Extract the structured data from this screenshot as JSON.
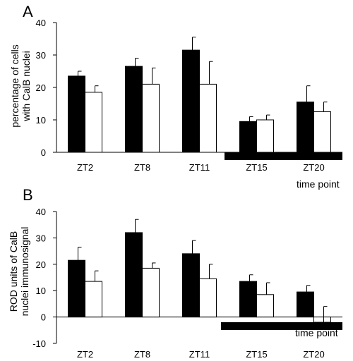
{
  "chart_data": [
    {
      "panel": "A",
      "type": "bar",
      "xlabel": "time point",
      "ylabel_lines": [
        "percentage of cells",
        "with CalB  nuclei"
      ],
      "ylim": [
        0,
        40
      ],
      "yticks": [
        "0",
        "10",
        "20",
        "30",
        "40"
      ],
      "categories": [
        "ZT2",
        "ZT8",
        "ZT11",
        "ZT15",
        "ZT20"
      ],
      "series": [
        {
          "fill": "#000000",
          "values": [
            23.5,
            26.5,
            31.5,
            9.5,
            15.5
          ],
          "errors": [
            1.5,
            2.5,
            4.0,
            1.5,
            5.0
          ]
        },
        {
          "fill": "#ffffff",
          "values": [
            18.5,
            21,
            21,
            10,
            12.5
          ],
          "errors": [
            2.0,
            5.0,
            7.0,
            1.5,
            3.0
          ]
        }
      ],
      "dark_phase": {
        "from_category": "ZT15",
        "to_category": "ZT20"
      },
      "grid": false,
      "legend": "none"
    },
    {
      "panel": "B",
      "type": "bar",
      "xlabel": "time point",
      "ylabel_lines": [
        "ROD units of CalB",
        "nuclei immunosignal"
      ],
      "ylim": [
        -10,
        40
      ],
      "yticks": [
        "-10",
        "0",
        "10",
        "20",
        "30",
        "40"
      ],
      "categories": [
        "ZT2",
        "ZT8",
        "ZT11",
        "ZT15",
        "ZT20"
      ],
      "series": [
        {
          "fill": "#000000",
          "values": [
            21.5,
            32,
            24,
            13.5,
            9.5
          ],
          "errors": [
            5.0,
            5.0,
            5.0,
            2.5,
            2.5
          ]
        },
        {
          "fill": "#ffffff",
          "values": [
            13.5,
            18.5,
            14.5,
            8.5,
            -2
          ],
          "errors": [
            4.0,
            2.0,
            5.5,
            4.5,
            6.0
          ]
        }
      ],
      "dark_phase": {
        "from_category": "ZT15",
        "to_category": "ZT20"
      },
      "grid": false,
      "legend": "none"
    }
  ]
}
